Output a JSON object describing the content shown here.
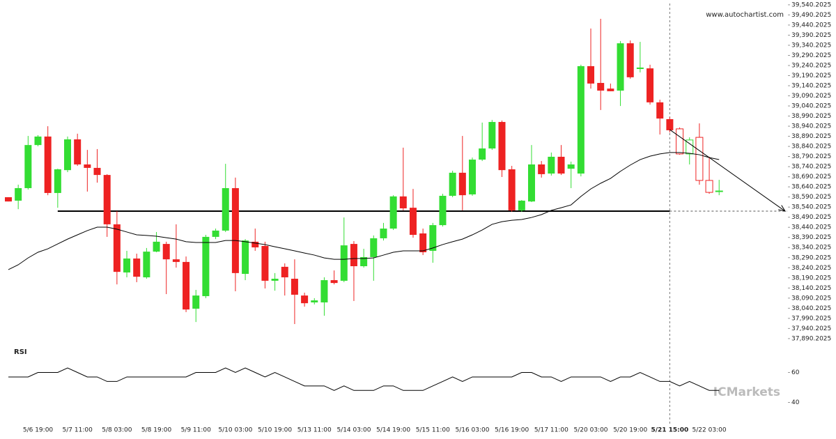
{
  "chart_data": {
    "type": "candlestick",
    "source": "www.autochartist.com",
    "brand": "ICMarkets",
    "categories": [
      null,
      null,
      null,
      "5/6 19:00",
      null,
      null,
      null,
      "5/7 11:00",
      null,
      null,
      null,
      "5/8 03:00",
      null,
      null,
      null,
      "5/8 19:00",
      null,
      null,
      null,
      "5/9 11:00",
      null,
      null,
      null,
      "5/10 03:00",
      null,
      null,
      null,
      "5/10 19:00",
      null,
      null,
      null,
      "5/13 11:00",
      null,
      null,
      null,
      "5/14 03:00",
      null,
      null,
      null,
      "5/14 19:00",
      null,
      null,
      null,
      "5/15 11:00",
      null,
      null,
      null,
      "5/16 03:00",
      null,
      null,
      null,
      "5/16 19:00",
      null,
      null,
      null,
      "5/17 11:00",
      null,
      null,
      null,
      "5/20 03:00",
      null,
      null,
      null,
      "5/20 19:00",
      null,
      null,
      null,
      "5/21 15:00",
      null,
      null,
      null,
      "5/22 03:00",
      null
    ],
    "open": [
      38589,
      38572,
      38634,
      38847,
      38889,
      38610,
      38723,
      38875,
      38751,
      38734,
      38699,
      38455,
      38217,
      38286,
      38193,
      38320,
      38358,
      38282,
      38269,
      38038,
      38100,
      38393,
      38424,
      38634,
      38210,
      38369,
      38348,
      38176,
      38245,
      38186,
      38103,
      38069,
      38069,
      38179,
      38176,
      38358,
      38248,
      38293,
      38386,
      38434,
      38593,
      38537,
      38410,
      38324,
      38451,
      38596,
      38710,
      38603,
      38775,
      38830,
      38961,
      38727,
      38524,
      38568,
      38751,
      38706,
      38789,
      38730,
      38706,
      39237,
      39154,
      39126,
      39116,
      39350,
      39223,
      39226,
      39058,
      38975,
      38927,
      38803,
      38885,
      38672,
      38617
    ],
    "high": [
      38589,
      38651,
      38892,
      38896,
      38940,
      38730,
      38889,
      38903,
      38823,
      38827,
      38703,
      38520,
      38324,
      38310,
      38338,
      38417,
      38369,
      38455,
      38296,
      38131,
      38403,
      38434,
      38754,
      38686,
      38382,
      38434,
      38369,
      38214,
      38262,
      38282,
      38117,
      38090,
      38193,
      38227,
      38489,
      38372,
      38334,
      38400,
      38462,
      38599,
      38834,
      38630,
      38434,
      38462,
      38606,
      38720,
      38892,
      38785,
      38958,
      38971,
      38968,
      38744,
      38575,
      38847,
      38768,
      38810,
      38847,
      38765,
      39244,
      39423,
      39471,
      39151,
      39361,
      39364,
      39357,
      39244,
      39071,
      38985,
      38934,
      38885,
      38954,
      38789,
      38675
    ],
    "low": [
      38568,
      38530,
      38627,
      38841,
      38599,
      38537,
      38713,
      38744,
      38617,
      38661,
      38393,
      38158,
      38193,
      38169,
      38186,
      38317,
      38110,
      38241,
      38021,
      37972,
      38090,
      38382,
      38417,
      38124,
      38179,
      38324,
      38138,
      38127,
      38103,
      37962,
      38048,
      38059,
      38003,
      38158,
      38169,
      38076,
      38241,
      38176,
      38375,
      38427,
      38524,
      38389,
      38303,
      38265,
      38444,
      38589,
      38524,
      38596,
      38768,
      38823,
      38689,
      38517,
      38517,
      38565,
      38686,
      38696,
      38699,
      38634,
      38692,
      39126,
      39020,
      39113,
      39040,
      39175,
      39206,
      39047,
      38899,
      38909,
      38799,
      38751,
      38651,
      38606,
      38599
    ],
    "close": [
      38568,
      38634,
      38847,
      38889,
      38610,
      38727,
      38875,
      38751,
      38734,
      38699,
      38455,
      38220,
      38286,
      38196,
      38320,
      38369,
      38282,
      38269,
      38034,
      38103,
      38393,
      38424,
      38634,
      38214,
      38375,
      38341,
      38176,
      38186,
      38193,
      38107,
      38065,
      38079,
      38179,
      38165,
      38351,
      38248,
      38293,
      38386,
      38434,
      38593,
      38534,
      38403,
      38317,
      38451,
      38596,
      38710,
      38599,
      38775,
      38830,
      38961,
      38723,
      38524,
      38572,
      38751,
      38703,
      38789,
      38706,
      38751,
      39237,
      39151,
      39116,
      39113,
      39350,
      39182,
      39230,
      39058,
      38978,
      38920,
      38803,
      38872,
      38672,
      38613,
      38620
    ],
    "up_color": "#33dd33",
    "down_color": "#ee2222",
    "ma": {
      "color": "#000000",
      "values": [
        38231,
        38255,
        38289,
        38317,
        38334,
        38358,
        38382,
        38403,
        38424,
        38441,
        38441,
        38431,
        38417,
        38403,
        38400,
        38396,
        38389,
        38382,
        38369,
        38365,
        38365,
        38365,
        38375,
        38375,
        38369,
        38362,
        38355,
        38344,
        38334,
        38324,
        38313,
        38303,
        38289,
        38282,
        38282,
        38286,
        38286,
        38289,
        38303,
        38317,
        38324,
        38324,
        38324,
        38338,
        38355,
        38369,
        38382,
        38403,
        38427,
        38455,
        38468,
        38475,
        38479,
        38489,
        38503,
        38524,
        38537,
        38551,
        38593,
        38630,
        38658,
        38682,
        38717,
        38748,
        38775,
        38792,
        38803,
        38810,
        38810,
        38806,
        38799,
        38785,
        38775
      ]
    },
    "support_level": 38520,
    "forecast_start": 38923,
    "ylim": [
      37876,
      39564
    ],
    "yticks": [
      {
        "value": 37890.2025,
        "label": "37,890.2025"
      },
      {
        "value": 37940.2025,
        "label": "37,940.2025"
      },
      {
        "value": 37990.2025,
        "label": "37,990.2025"
      },
      {
        "value": 38040.2025,
        "label": "38,040.2025"
      },
      {
        "value": 38090.2025,
        "label": "38,090.2025"
      },
      {
        "value": 38140.2025,
        "label": "38,140.2025"
      },
      {
        "value": 38190.2025,
        "label": "38,190.2025"
      },
      {
        "value": 38240.2025,
        "label": "38,240.2025"
      },
      {
        "value": 38290.2025,
        "label": "38,290.2025"
      },
      {
        "value": 38340.2025,
        "label": "38,340.2025"
      },
      {
        "value": 38390.2025,
        "label": "38,390.2025"
      },
      {
        "value": 38440.2025,
        "label": "38,440.2025"
      },
      {
        "value": 38490.2025,
        "label": "38,490.2025"
      },
      {
        "value": 38540.2025,
        "label": "38,540.2025"
      },
      {
        "value": 38590.2025,
        "label": "38,590.2025"
      },
      {
        "value": 38640.2025,
        "label": "38,640.2025"
      },
      {
        "value": 38690.2025,
        "label": "38,690.2025"
      },
      {
        "value": 38740.2025,
        "label": "38,740.2025"
      },
      {
        "value": 38790.2025,
        "label": "38,790.2025"
      },
      {
        "value": 38840.2025,
        "label": "38,840.2025"
      },
      {
        "value": 38890.2025,
        "label": "38,890.2025"
      },
      {
        "value": 38940.2025,
        "label": "38,940.2025"
      },
      {
        "value": 38990.2025,
        "label": "38,990.2025"
      },
      {
        "value": 39040.2025,
        "label": "39,040.2025"
      },
      {
        "value": 39090.2025,
        "label": "39,090.2025"
      },
      {
        "value": 39140.2025,
        "label": "39,140.2025"
      },
      {
        "value": 39190.2025,
        "label": "39,190.2025"
      },
      {
        "value": 39240.2025,
        "label": "39,240.2025"
      },
      {
        "value": 39290.2025,
        "label": "39,290.2025"
      },
      {
        "value": 39340.2025,
        "label": "39,340.2025"
      },
      {
        "value": 39390.2025,
        "label": "39,390.2025"
      },
      {
        "value": 39440.2025,
        "label": "39,440.2025"
      },
      {
        "value": 39490.2025,
        "label": "39,490.2025"
      },
      {
        "value": 39540.2025,
        "label": "39,540.2025"
      }
    ],
    "rsi": {
      "label": "RSI",
      "color": "#000000",
      "ylim": [
        30,
        70
      ],
      "yticks": [
        40,
        60
      ],
      "values": [
        57,
        57,
        57,
        60,
        60,
        60,
        63,
        60,
        57,
        57,
        54,
        54,
        57,
        57,
        57,
        57,
        57,
        57,
        57,
        60,
        60,
        60,
        63,
        60,
        63,
        60,
        57,
        60,
        57,
        54,
        51,
        51,
        51,
        48,
        51,
        48,
        48,
        48,
        51,
        51,
        48,
        48,
        48,
        51,
        54,
        57,
        54,
        57,
        57,
        57,
        57,
        57,
        60,
        60,
        57,
        57,
        54,
        57,
        57,
        57,
        57,
        54,
        57,
        57,
        60,
        57,
        54,
        54,
        51,
        54,
        51,
        48,
        48
      ]
    }
  }
}
